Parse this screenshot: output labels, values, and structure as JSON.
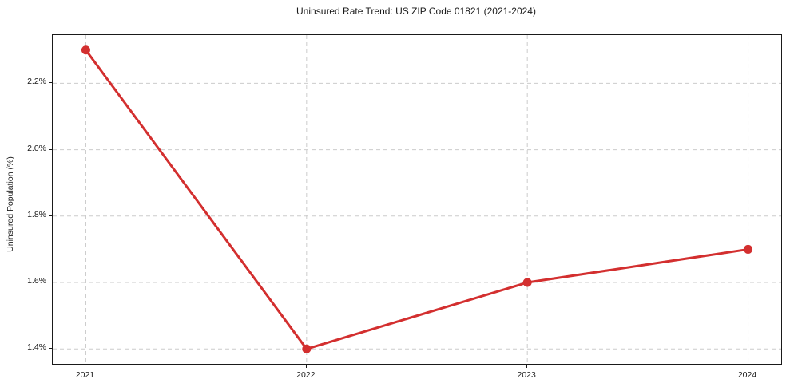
{
  "title": "Uninsured Rate Trend: US ZIP Code 01821 (2021-2024)",
  "chart_data": {
    "type": "line",
    "title": "Uninsured Rate Trend: US ZIP Code 01821 (2021-2024)",
    "xlabel": "",
    "ylabel": "Uninsured Population (%)",
    "x": [
      2021,
      2022,
      2023,
      2024
    ],
    "series": [
      {
        "name": "Uninsured Population (%)",
        "values": [
          2.3,
          1.4,
          1.6,
          1.7
        ],
        "color": "#d32f2f",
        "marker": "circle",
        "line_width": 3,
        "marker_radius": 5.5
      }
    ],
    "x_ticks": [
      {
        "value": 2021,
        "label": "2021"
      },
      {
        "value": 2022,
        "label": "2022"
      },
      {
        "value": 2023,
        "label": "2023"
      },
      {
        "value": 2024,
        "label": "2024"
      }
    ],
    "y_ticks": [
      {
        "value": 1.4,
        "label": "1.4%"
      },
      {
        "value": 1.6,
        "label": "1.6%"
      },
      {
        "value": 1.8,
        "label": "1.8%"
      },
      {
        "value": 2.0,
        "label": "2.0%"
      },
      {
        "value": 2.2,
        "label": "2.2%"
      }
    ],
    "xlim": [
      2020.85,
      2024.15
    ],
    "ylim": [
      1.355,
      2.345
    ],
    "grid": true,
    "grid_color": "#cbcbcb",
    "grid_style": "dashed",
    "axis_border_color": "#1a1a1a",
    "legend": "none"
  }
}
